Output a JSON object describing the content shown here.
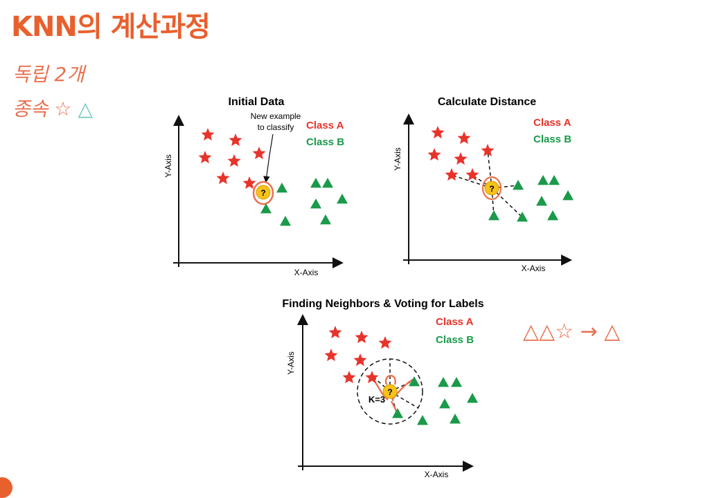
{
  "header": {
    "title": "KNN의 계산과정"
  },
  "handwriting": {
    "line1": "독립 2개",
    "line2_text": "종속 ☆",
    "line2_triangle": "△",
    "bottom_right": "△△☆ → △"
  },
  "colors": {
    "accent": "#e8602e",
    "class_a": "#e8332b",
    "class_b": "#1a9a4a",
    "query": "#f6c21a",
    "annotation": "#e8714f"
  },
  "panels": [
    {
      "title": "Initial Data",
      "legend_a": "Class A",
      "legend_b": "Class B",
      "xlabel": "X-Axis",
      "ylabel": "Y-Axis",
      "callout_line1": "New example",
      "callout_line2": "to classify",
      "query_label": "?"
    },
    {
      "title": "Calculate Distance",
      "legend_a": "Class A",
      "legend_b": "Class B",
      "xlabel": "X-Axis",
      "ylabel": "Y-Axis",
      "query_label": "?"
    },
    {
      "title": "Finding Neighbors & Voting for Labels",
      "legend_a": "Class A",
      "legend_b": "Class B",
      "xlabel": "X-Axis",
      "ylabel": "Y-Axis",
      "k_label": "K=3",
      "query_label": "?"
    }
  ]
}
